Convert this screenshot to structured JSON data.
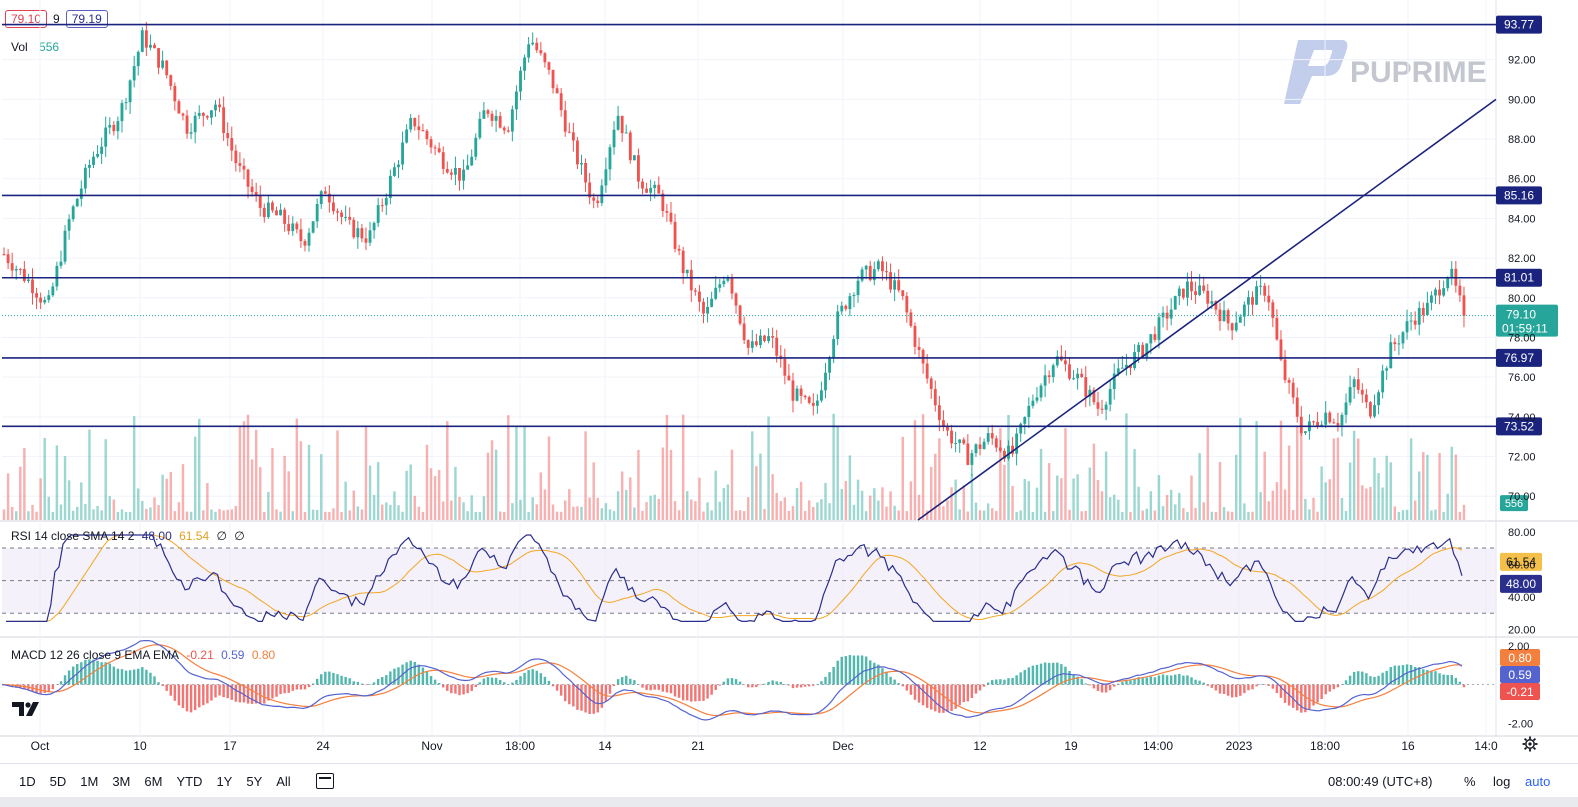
{
  "header": {
    "bid": "79.10",
    "spread": "9",
    "ask": "79.19"
  },
  "volume_label": {
    "label": "Vol",
    "value": "556"
  },
  "rsi_label": {
    "title": "RSI 14 close SMA 14 2",
    "v1": "48.00",
    "v2": "61.54",
    "v3": "∅",
    "v4": "∅"
  },
  "macd_label": {
    "title": "MACD 12 26 close 9 EMA EMA",
    "v1": "-0.21",
    "v2": "0.59",
    "v3": "0.80"
  },
  "brand": {
    "name": "PUPRIME"
  },
  "colors": {
    "up": "#26a69a",
    "down": "#ef5350",
    "level": "#1a237e",
    "rsi": "#2a2e8c",
    "rsi_signal": "#f5a623",
    "macd": "#5563d0",
    "signal": "#f5803e"
  },
  "bottom_bar": {
    "timeframes": [
      "1D",
      "5D",
      "1M",
      "3M",
      "6M",
      "YTD",
      "1Y",
      "5Y",
      "All"
    ],
    "clock": "08:00:49 (UTC+8)",
    "percent": "%",
    "log": "log",
    "auto": "auto"
  },
  "chart_data": [
    {
      "type": "candlestick",
      "y_ticks": [
        "92.00",
        "90.00",
        "88.00",
        "86.00",
        "84.00",
        "82.00",
        "80.00",
        "78.00",
        "76.00",
        "74.00",
        "72.00",
        "70.00"
      ],
      "ylim": [
        68.8,
        94.0
      ],
      "x_ticks": [
        "Oct",
        "10",
        "17",
        "24",
        "Nov",
        "18:00",
        "14",
        "21",
        "Dec",
        "12",
        "19",
        "14:00",
        "2023",
        "18:00",
        "16",
        "14:0"
      ],
      "levels": [
        {
          "value": 93.77,
          "label": "93.77"
        },
        {
          "value": 85.16,
          "label": "85.16"
        },
        {
          "value": 81.01,
          "label": "81.01"
        },
        {
          "value": 76.97,
          "label": "76.97"
        },
        {
          "value": 73.52,
          "label": "73.52"
        }
      ],
      "trendlines": [
        {
          "from": {
            "x": "Dec 7",
            "y": 68.8
          },
          "to": {
            "x": "Jan 2",
            "y": 81.0
          }
        },
        {
          "from": {
            "x": "Jan 2",
            "y": 81.0
          },
          "to": {
            "x": "Jan 20",
            "y": 90.0
          }
        }
      ],
      "last_price": {
        "value": 79.1,
        "label": "79.10",
        "countdown": "01:59:11"
      },
      "volume_last": "556",
      "path": [
        {
          "t": 0,
          "p": 82.2
        },
        {
          "t": 0.02,
          "p": 80.6
        },
        {
          "t": 0.03,
          "p": 79.5
        },
        {
          "t": 0.045,
          "p": 84.0
        },
        {
          "t": 0.06,
          "p": 87.0
        },
        {
          "t": 0.08,
          "p": 89.4
        },
        {
          "t": 0.095,
          "p": 93.2
        },
        {
          "t": 0.11,
          "p": 91.5
        },
        {
          "t": 0.125,
          "p": 88.6
        },
        {
          "t": 0.145,
          "p": 89.8
        },
        {
          "t": 0.16,
          "p": 86.6
        },
        {
          "t": 0.175,
          "p": 84.6
        },
        {
          "t": 0.19,
          "p": 84.0
        },
        {
          "t": 0.205,
          "p": 82.8
        },
        {
          "t": 0.22,
          "p": 85.5
        },
        {
          "t": 0.235,
          "p": 83.6
        },
        {
          "t": 0.25,
          "p": 83.0
        },
        {
          "t": 0.265,
          "p": 86.0
        },
        {
          "t": 0.28,
          "p": 89.0
        },
        {
          "t": 0.3,
          "p": 87.0
        },
        {
          "t": 0.315,
          "p": 86.0
        },
        {
          "t": 0.33,
          "p": 89.6
        },
        {
          "t": 0.345,
          "p": 88.6
        },
        {
          "t": 0.36,
          "p": 93.2
        },
        {
          "t": 0.375,
          "p": 91.0
        },
        {
          "t": 0.39,
          "p": 87.5
        },
        {
          "t": 0.405,
          "p": 84.6
        },
        {
          "t": 0.42,
          "p": 89.4
        },
        {
          "t": 0.435,
          "p": 86.0
        },
        {
          "t": 0.45,
          "p": 85.0
        },
        {
          "t": 0.465,
          "p": 81.5
        },
        {
          "t": 0.48,
          "p": 79.0
        },
        {
          "t": 0.495,
          "p": 81.5
        },
        {
          "t": 0.51,
          "p": 77.4
        },
        {
          "t": 0.525,
          "p": 78.0
        },
        {
          "t": 0.54,
          "p": 75.2
        },
        {
          "t": 0.555,
          "p": 74.2
        },
        {
          "t": 0.57,
          "p": 78.8
        },
        {
          "t": 0.585,
          "p": 81.0
        },
        {
          "t": 0.6,
          "p": 81.5
        },
        {
          "t": 0.615,
          "p": 80.0
        },
        {
          "t": 0.63,
          "p": 76.4
        },
        {
          "t": 0.645,
          "p": 73.3
        },
        {
          "t": 0.66,
          "p": 72.0
        },
        {
          "t": 0.675,
          "p": 73.0
        },
        {
          "t": 0.69,
          "p": 72.0
        },
        {
          "t": 0.705,
          "p": 75.0
        },
        {
          "t": 0.72,
          "p": 77.0
        },
        {
          "t": 0.735,
          "p": 76.0
        },
        {
          "t": 0.75,
          "p": 74.4
        },
        {
          "t": 0.765,
          "p": 76.4
        },
        {
          "t": 0.78,
          "p": 77.4
        },
        {
          "t": 0.795,
          "p": 79.0
        },
        {
          "t": 0.81,
          "p": 80.6
        },
        {
          "t": 0.825,
          "p": 80.0
        },
        {
          "t": 0.84,
          "p": 78.6
        },
        {
          "t": 0.855,
          "p": 80.0
        },
        {
          "t": 0.865,
          "p": 80.5
        },
        {
          "t": 0.875,
          "p": 76.5
        },
        {
          "t": 0.89,
          "p": 73.2
        },
        {
          "t": 0.905,
          "p": 74.2
        },
        {
          "t": 0.915,
          "p": 73.8
        },
        {
          "t": 0.925,
          "p": 75.8
        },
        {
          "t": 0.935,
          "p": 74.2
        },
        {
          "t": 0.95,
          "p": 77.4
        },
        {
          "t": 0.965,
          "p": 79.0
        },
        {
          "t": 0.975,
          "p": 79.5
        },
        {
          "t": 0.99,
          "p": 81.4
        },
        {
          "t": 1.0,
          "p": 79.1
        }
      ]
    },
    {
      "type": "line",
      "name": "RSI",
      "y_ticks": [
        "80.00",
        "60.00",
        "40.00",
        "20.00"
      ],
      "ylim": [
        16,
        86
      ],
      "bands": [
        70,
        50,
        30
      ],
      "last": {
        "rsi": "48.00",
        "sma": "61.54"
      }
    },
    {
      "type": "bar",
      "name": "MACD",
      "y_ticks": [
        "2.00",
        "-2.00"
      ],
      "ylim": [
        -2.6,
        2.4
      ],
      "last": {
        "histogram": "-0.21",
        "macd": "0.59",
        "signal": "0.80"
      }
    }
  ]
}
